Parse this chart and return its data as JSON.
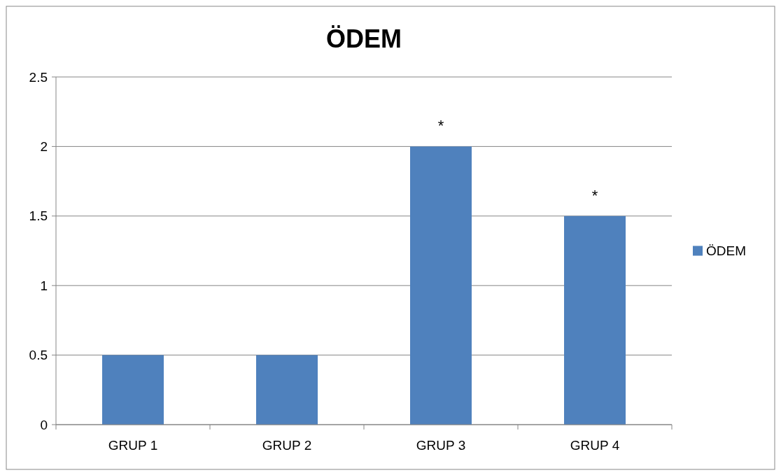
{
  "chart_data": {
    "type": "bar",
    "title": "ÖDEM",
    "categories": [
      "GRUP 1",
      "GRUP 2",
      "GRUP 3",
      "GRUP 4"
    ],
    "series": [
      {
        "name": "ÖDEM",
        "color": "#4f81bd",
        "values": [
          0.5,
          0.5,
          2,
          1.5
        ]
      }
    ],
    "ylim": [
      0,
      2.5
    ],
    "yticks": [
      0,
      0.5,
      1,
      1.5,
      2,
      2.5
    ],
    "grid": "y",
    "legend": "right",
    "annotations": [
      {
        "text": "*",
        "x": "GRUP 3",
        "y": 2
      },
      {
        "text": "*",
        "x": "GRUP 4",
        "y": 1.5
      }
    ]
  }
}
